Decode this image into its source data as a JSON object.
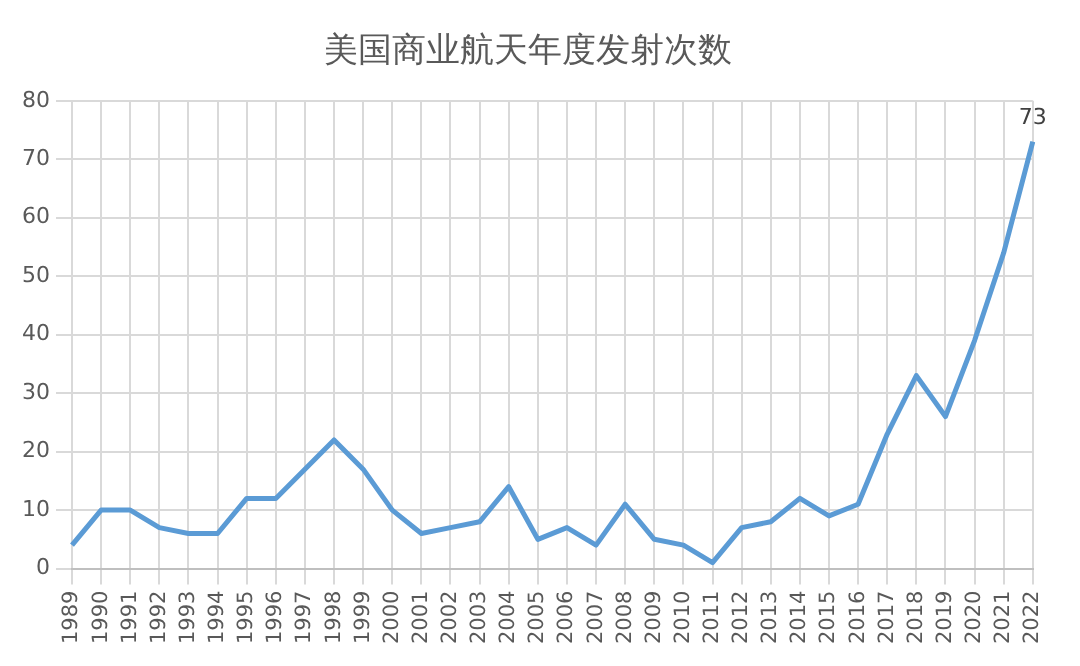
{
  "chart_data": {
    "type": "line",
    "title": "美国商业航天年度发射次数",
    "categories": [
      "1989",
      "1990",
      "1991",
      "1992",
      "1993",
      "1994",
      "1995",
      "1996",
      "1997",
      "1998",
      "1999",
      "2000",
      "2001",
      "2002",
      "2003",
      "2004",
      "2005",
      "2006",
      "2007",
      "2008",
      "2009",
      "2010",
      "2011",
      "2012",
      "2013",
      "2014",
      "2015",
      "2016",
      "2017",
      "2018",
      "2019",
      "2020",
      "2021",
      "2022"
    ],
    "series": [
      {
        "color": "#5b9bd5",
        "values": [
          4,
          10,
          10,
          7,
          6,
          6,
          12,
          12,
          17,
          22,
          17,
          10,
          6,
          7,
          8,
          14,
          5,
          7,
          4,
          11,
          5,
          4,
          1,
          7,
          8,
          12,
          9,
          11,
          23,
          33,
          26,
          39,
          54,
          73
        ],
        "value_labels": [
          null,
          null,
          null,
          null,
          null,
          null,
          null,
          null,
          null,
          null,
          null,
          null,
          null,
          null,
          null,
          null,
          null,
          null,
          null,
          null,
          null,
          null,
          null,
          null,
          null,
          null,
          null,
          null,
          null,
          null,
          null,
          null,
          null,
          "73"
        ]
      }
    ],
    "ylim": [
      0,
      80
    ],
    "yticks": [
      0,
      10,
      20,
      30,
      40,
      50,
      60,
      70,
      80
    ],
    "grid": true,
    "legend": false,
    "marker": "none",
    "line_style": "solid"
  }
}
